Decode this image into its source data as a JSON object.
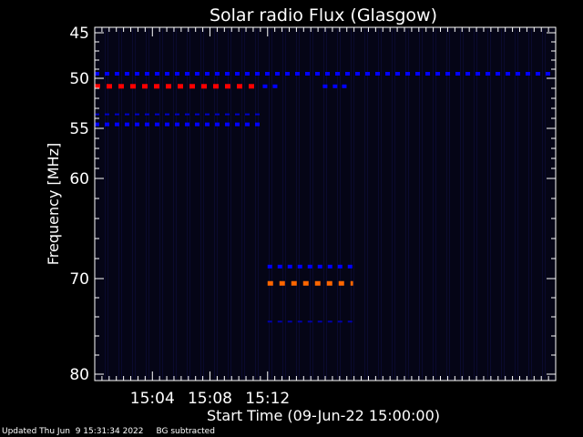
{
  "chart_data": {
    "type": "heatmap",
    "title": "Solar radio Flux (Glasgow)",
    "xlabel": "Start Time (09-Jun-22 15:00:00)",
    "ylabel": "Frequency [MHz]",
    "xlim": [
      15.0,
      15.5333
    ],
    "ylim": [
      45,
      80
    ],
    "x_ticks": [
      {
        "value": 15.0667,
        "label": "15:04"
      },
      {
        "value": 15.1333,
        "label": "15:08"
      },
      {
        "value": 15.2,
        "label": "15:12"
      }
    ],
    "y_ticks": [
      {
        "value": 45,
        "label": "45"
      },
      {
        "value": 50,
        "label": "50"
      },
      {
        "value": 55,
        "label": "55"
      },
      {
        "value": 60,
        "label": "60"
      },
      {
        "value": 70,
        "label": "70"
      },
      {
        "value": 80,
        "label": "80"
      }
    ],
    "bands": [
      {
        "freq": 49.5,
        "x_start": 15.0,
        "x_end": 15.5333,
        "color": "#0000ff",
        "intensity": "medium"
      },
      {
        "freq": 50.8,
        "x_start": 15.0,
        "x_end": 15.1917,
        "color": "#ff0000",
        "intensity": "high"
      },
      {
        "freq": 50.8,
        "x_start": 15.1944,
        "x_end": 15.2139,
        "color": "#0000ff",
        "intensity": "medium"
      },
      {
        "freq": 50.8,
        "x_start": 15.2639,
        "x_end": 15.2806,
        "color": "#0000ff",
        "intensity": "medium"
      },
      {
        "freq": 50.8,
        "x_start": 15.2861,
        "x_end": 15.2917,
        "color": "#0000ff",
        "intensity": "medium"
      },
      {
        "freq": 53.6,
        "x_start": 15.0,
        "x_end": 15.1917,
        "color": "#0000cc",
        "intensity": "low"
      },
      {
        "freq": 54.6,
        "x_start": 15.0,
        "x_end": 15.1917,
        "color": "#0000ff",
        "intensity": "medium"
      },
      {
        "freq": 68.8,
        "x_start": 15.2,
        "x_end": 15.2989,
        "color": "#0000ff",
        "intensity": "medium"
      },
      {
        "freq": 70.5,
        "x_start": 15.2,
        "x_end": 15.2989,
        "color": "#ff6600",
        "intensity": "high"
      },
      {
        "freq": 74.5,
        "x_start": 15.2,
        "x_end": 15.2989,
        "color": "#0000aa",
        "intensity": "low"
      }
    ]
  },
  "footer": {
    "updated": "Updated Thu Jun  9 15:31:34 2022",
    "note": "BG subtracted"
  }
}
